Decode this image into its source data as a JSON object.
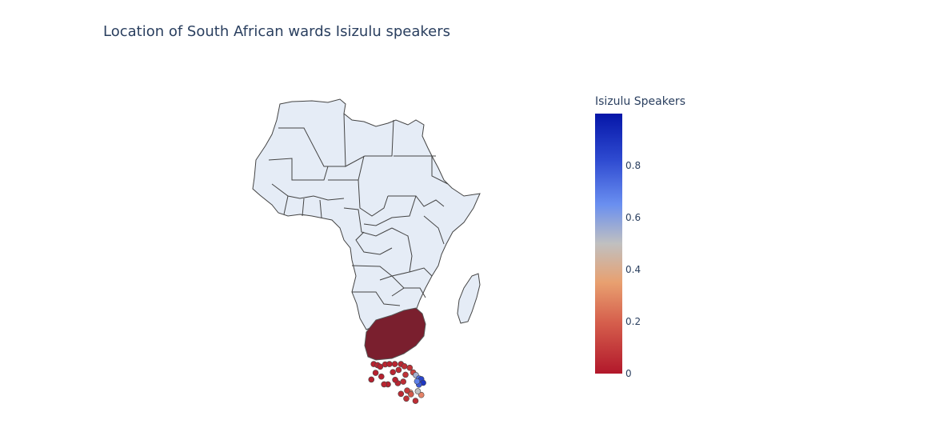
{
  "title": "Location of South African wards Isizulu speakers",
  "colorbar": {
    "title": "Isizulu Speakers",
    "ticks": [
      {
        "label": "0",
        "value": 0
      },
      {
        "label": "0.2",
        "value": 0.2
      },
      {
        "label": "0.4",
        "value": 0.4
      },
      {
        "label": "0.6",
        "value": 0.6
      },
      {
        "label": "0.8",
        "value": 0.8
      }
    ],
    "range": [
      0,
      1
    ],
    "colorscale": [
      "#b2182b",
      "#d6604d",
      "#f4a582",
      "#c0c0c0",
      "#6a8ff0",
      "#2f4bd1",
      "#0516a8"
    ]
  },
  "chart_data": {
    "type": "map",
    "region": "Africa",
    "title": "Location of South African wards Isizulu speakers",
    "legend_title": "Isizulu Speakers",
    "markers": [
      {
        "lon": 18.5,
        "lat": -33.9,
        "value": 0.02
      },
      {
        "lon": 19.5,
        "lat": -33.6,
        "value": 0.03
      },
      {
        "lon": 20.2,
        "lat": -33.2,
        "value": 0.02
      },
      {
        "lon": 21.5,
        "lat": -33.8,
        "value": 0.03
      },
      {
        "lon": 22.6,
        "lat": -33.9,
        "value": 0.02
      },
      {
        "lon": 24.0,
        "lat": -33.9,
        "value": 0.03
      },
      {
        "lon": 25.6,
        "lat": -33.9,
        "value": 0.03
      },
      {
        "lon": 26.5,
        "lat": -33.3,
        "value": 0.05
      },
      {
        "lon": 27.9,
        "lat": -32.9,
        "value": 0.06
      },
      {
        "lon": 28.8,
        "lat": -31.6,
        "value": 0.1
      },
      {
        "lon": 29.5,
        "lat": -30.9,
        "value": 0.55
      },
      {
        "lon": 30.3,
        "lat": -30.0,
        "value": 0.75
      },
      {
        "lon": 30.9,
        "lat": -29.8,
        "value": 0.85
      },
      {
        "lon": 31.4,
        "lat": -28.8,
        "value": 0.9
      },
      {
        "lon": 30.3,
        "lat": -28.3,
        "value": 0.8
      },
      {
        "lon": 29.8,
        "lat": -29.2,
        "value": 0.7
      },
      {
        "lon": 28.0,
        "lat": -26.2,
        "value": 0.3
      },
      {
        "lon": 28.2,
        "lat": -25.7,
        "value": 0.15
      },
      {
        "lon": 27.2,
        "lat": -26.7,
        "value": 0.08
      },
      {
        "lon": 26.2,
        "lat": -29.1,
        "value": 0.05
      },
      {
        "lon": 24.8,
        "lat": -28.7,
        "value": 0.03
      },
      {
        "lon": 24.1,
        "lat": -29.6,
        "value": 0.02
      },
      {
        "lon": 22.2,
        "lat": -28.4,
        "value": 0.02
      },
      {
        "lon": 21.2,
        "lat": -28.4,
        "value": 0.03
      },
      {
        "lon": 20.5,
        "lat": -30.5,
        "value": 0.02
      },
      {
        "lon": 19.0,
        "lat": -31.5,
        "value": 0.02
      },
      {
        "lon": 17.9,
        "lat": -29.7,
        "value": 0.02
      },
      {
        "lon": 23.5,
        "lat": -31.7,
        "value": 0.03
      },
      {
        "lon": 25.0,
        "lat": -32.3,
        "value": 0.04
      },
      {
        "lon": 26.8,
        "lat": -31.0,
        "value": 0.06
      },
      {
        "lon": 29.4,
        "lat": -23.9,
        "value": 0.05
      },
      {
        "lon": 30.9,
        "lat": -25.5,
        "value": 0.25
      },
      {
        "lon": 30.0,
        "lat": -26.5,
        "value": 0.5
      },
      {
        "lon": 27.0,
        "lat": -24.5,
        "value": 0.06
      },
      {
        "lon": 25.6,
        "lat": -25.8,
        "value": 0.04
      }
    ]
  }
}
